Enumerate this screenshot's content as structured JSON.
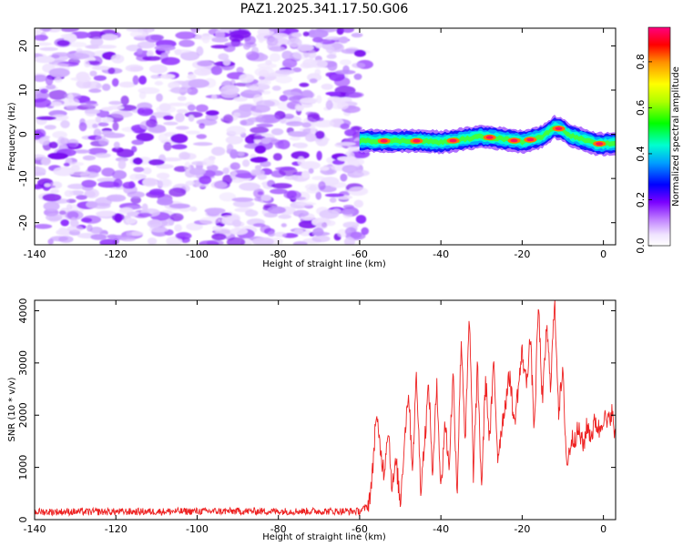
{
  "title": "PAZ1.2025.341.17.50.G06",
  "chart_data": [
    {
      "type": "heatmap",
      "name": "spectrogram",
      "xlabel": "Height of straight line (km)",
      "ylabel": "Frequency (Hz)",
      "xlim": [
        -140,
        3
      ],
      "ylim": [
        -25,
        24
      ],
      "xticks": [
        -140,
        -120,
        -100,
        -80,
        -60,
        -40,
        -20,
        0
      ],
      "yticks": [
        -20,
        -10,
        0,
        10,
        20
      ],
      "noise_region_x": [
        -140,
        -60
      ],
      "signal_region_x": [
        -60,
        3
      ],
      "signal_ridge": {
        "x": [
          -60,
          -55,
          -50,
          -45,
          -40,
          -35,
          -30,
          -25,
          -20,
          -15,
          -12,
          -10,
          -8,
          -5,
          -2,
          0,
          3
        ],
        "freq": [
          -1.5,
          -1.5,
          -1.5,
          -1.5,
          -1.8,
          -1.2,
          -0.5,
          -1.0,
          -1.7,
          -0.5,
          1.6,
          1.0,
          -0.3,
          -1.2,
          -2.1,
          -2.2,
          -2.0
        ]
      },
      "colorbar": {
        "label": "Normalized spectral amplitude",
        "range": [
          0,
          0.95
        ],
        "ticks": [
          0.0,
          0.2,
          0.4,
          0.6,
          0.8
        ]
      }
    },
    {
      "type": "line",
      "name": "snr",
      "xlabel": "Height of straight line (km)",
      "ylabel": "SNR (10 * v/v)",
      "xlim": [
        -140,
        3
      ],
      "ylim": [
        0,
        4200
      ],
      "xticks": [
        -140,
        -120,
        -100,
        -80,
        -60,
        -40,
        -20,
        0
      ],
      "yticks": [
        0,
        1000,
        2000,
        3000,
        4000
      ],
      "color": "#ee2222",
      "series": {
        "x": [
          -140,
          -120,
          -100,
          -80,
          -60,
          -58,
          -57,
          -56,
          -55,
          -54,
          -53,
          -52,
          -51,
          -50,
          -49,
          -48,
          -47,
          -46,
          -45,
          -44,
          -43,
          -42,
          -41,
          -40,
          -39,
          -38,
          -37,
          -36,
          -35,
          -34,
          -33,
          -32,
          -31,
          -30,
          -29,
          -28,
          -27,
          -26,
          -25,
          -24,
          -23,
          -22,
          -21,
          -20,
          -19,
          -18,
          -17,
          -16,
          -15,
          -14,
          -13,
          -12,
          -11,
          -10,
          -9,
          -8,
          -7,
          -6,
          -5,
          -4,
          -3,
          -2,
          -1,
          0,
          1,
          2,
          3
        ],
        "y": [
          150,
          150,
          160,
          160,
          160,
          250,
          700,
          2000,
          1400,
          900,
          1800,
          600,
          1100,
          300,
          1500,
          2500,
          1000,
          2800,
          600,
          1500,
          2600,
          800,
          2700,
          500,
          1900,
          1000,
          2800,
          500,
          3500,
          1500,
          3900,
          900,
          2900,
          600,
          2700,
          1500,
          3000,
          1200,
          1800,
          2300,
          2800,
          1800,
          2500,
          3200,
          2600,
          3500,
          1700,
          4150,
          2200,
          3700,
          2600,
          4200,
          2100,
          2800,
          1000,
          1500,
          1600,
          1700,
          1400,
          1800,
          1600,
          1900,
          1700,
          2000,
          1800,
          2100,
          1500
        ]
      }
    }
  ]
}
